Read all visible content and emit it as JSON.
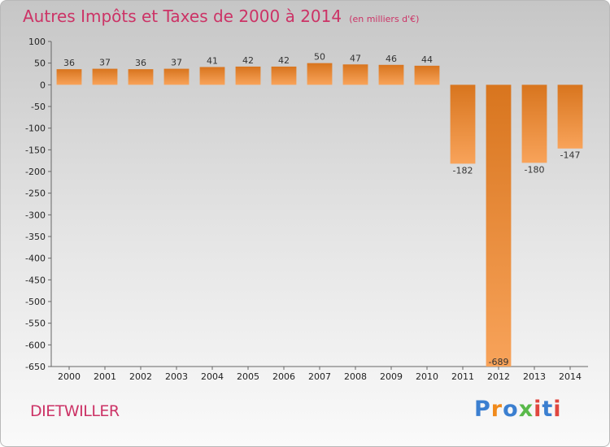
{
  "title": "Autres Impôts et Taxes de 2000 à 2014",
  "unit_label": "(en milliers d'€)",
  "commune": "DIETWILLER",
  "logo": {
    "text": "Proxiti",
    "colors": [
      "#3b7fd0",
      "#f08a1c",
      "#59b94a",
      "#e0473f"
    ]
  },
  "chart_data": {
    "type": "bar",
    "categories": [
      "2000",
      "2001",
      "2002",
      "2003",
      "2004",
      "2005",
      "2006",
      "2007",
      "2008",
      "2009",
      "2010",
      "2011",
      "2012",
      "2013",
      "2014"
    ],
    "values": [
      36,
      37,
      36,
      37,
      41,
      42,
      42,
      50,
      47,
      46,
      44,
      -182,
      -689,
      -180,
      -147
    ],
    "data_labels": [
      "36",
      "37",
      "36",
      "37",
      "41",
      "42",
      "42",
      "50",
      "47",
      "46",
      "44",
      "-182",
      "-689",
      "-180",
      "-147"
    ],
    "ylim": [
      -650,
      100
    ],
    "yticks": [
      100,
      50,
      0,
      -50,
      -100,
      -150,
      -200,
      -250,
      -300,
      -350,
      -400,
      -450,
      -500,
      -550,
      -600,
      -650
    ],
    "grid": false,
    "bar_color_light": "#f8a35a",
    "bar_color_dark": "#d8751e"
  }
}
